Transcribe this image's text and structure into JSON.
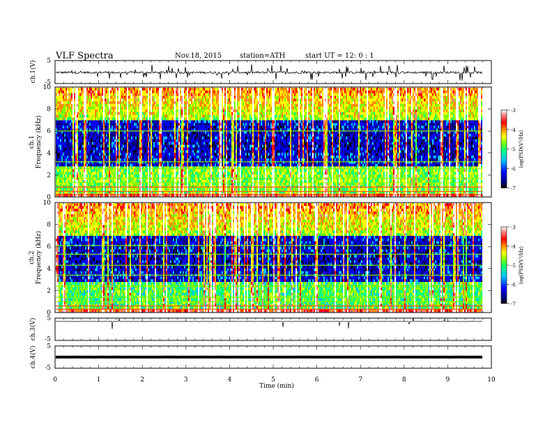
{
  "header": {
    "title": "VLF  Spectra",
    "date": "Nov.18, 2015",
    "station": "station=ATH",
    "start_ut": "start  UT  =   12: 0  : 1"
  },
  "chart_data": [
    {
      "type": "line",
      "ylabel": "ch.1(V)",
      "ylim": [
        -5,
        5
      ],
      "yticks": [
        "5",
        "-5"
      ],
      "xlim": [
        0,
        10
      ],
      "description_level_v": -0.2
    },
    {
      "type": "heatmap",
      "ylabel": "ch.1\nFrequency  (kHz)",
      "ylabel_line1": "ch.1",
      "ylabel_line2": "Frequency  (kHz)",
      "ylim": [
        0,
        10
      ],
      "yticks": [
        "0",
        "2",
        "4",
        "6",
        "8",
        "10"
      ],
      "xlim": [
        0,
        10
      ],
      "data_x_max": 9.8,
      "colorbar": {
        "label": "log(PSD(V²/Hz)",
        "range": [
          -7,
          -3
        ],
        "ticks": [
          "-3",
          "-4",
          "-5",
          "-6",
          "-7"
        ],
        "colors": [
          "#000000",
          "#00008b",
          "#0000ff",
          "#00bfff",
          "#00ff7f",
          "#7fff00",
          "#ffff00",
          "#ff8c00",
          "#ff0000",
          "#ff7f7f",
          "#ffffff"
        ]
      }
    },
    {
      "type": "heatmap",
      "ylabel_line1": "ch.2",
      "ylabel_line2": "Frequency  (kHz)",
      "ylim": [
        0,
        10
      ],
      "yticks": [
        "0",
        "2",
        "4",
        "6",
        "8",
        "10"
      ],
      "xlim": [
        0,
        10
      ],
      "data_x_max": 9.8,
      "colorbar": {
        "label": "log(PSD(V²/Hz)",
        "range": [
          -7,
          -3
        ],
        "ticks": [
          "-3",
          "-4",
          "-5",
          "-6",
          "-7"
        ]
      }
    },
    {
      "type": "line",
      "ylabel": "ch.3(V)",
      "ylim": [
        -5,
        5
      ],
      "yticks": [
        "5",
        "-5"
      ],
      "xlim": [
        0,
        10
      ],
      "description_level_v": 3.5
    },
    {
      "type": "line",
      "ylabel": "ch.4(V)",
      "ylim": [
        -5,
        5
      ],
      "yticks": [
        "5",
        "-5"
      ],
      "xlim": [
        0,
        10
      ],
      "description_level_v": 0
    }
  ],
  "x_axis": {
    "label": "Time  (min)",
    "ticks": [
      "0",
      "1",
      "2",
      "3",
      "4",
      "5",
      "6",
      "7",
      "8",
      "9",
      "10"
    ]
  }
}
